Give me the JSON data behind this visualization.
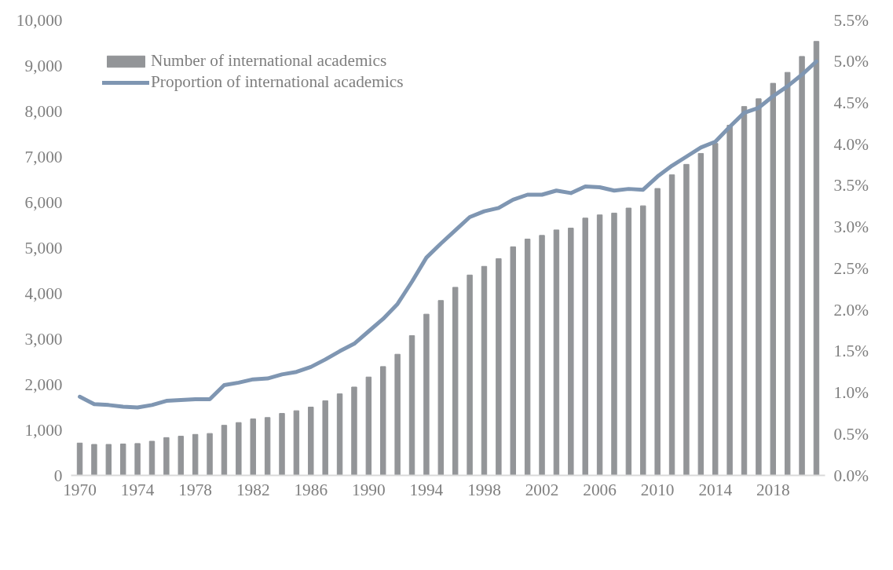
{
  "chart_data": {
    "type": "bar",
    "x": [
      1970,
      1971,
      1972,
      1973,
      1974,
      1975,
      1976,
      1977,
      1978,
      1979,
      1980,
      1981,
      1982,
      1983,
      1984,
      1985,
      1986,
      1987,
      1988,
      1989,
      1990,
      1991,
      1992,
      1993,
      1994,
      1995,
      1996,
      1997,
      1998,
      1999,
      2000,
      2001,
      2002,
      2003,
      2004,
      2005,
      2006,
      2007,
      2008,
      2009,
      2010,
      2011,
      2012,
      2013,
      2014,
      2015,
      2016,
      2017,
      2018,
      2019,
      2020,
      2021
    ],
    "series": [
      {
        "name": "Number of international academics",
        "color": "#939598",
        "values": [
          710,
          680,
          680,
          690,
          700,
          750,
          830,
          860,
          900,
          920,
          1100,
          1160,
          1240,
          1270,
          1360,
          1420,
          1500,
          1640,
          1790,
          1940,
          2160,
          2390,
          2660,
          3070,
          3540,
          3840,
          4130,
          4400,
          4590,
          4760,
          5020,
          5190,
          5270,
          5390,
          5430,
          5650,
          5720,
          5760,
          5870,
          5920,
          6300,
          6600,
          6830,
          7070,
          7290,
          7690,
          8100,
          8270,
          8610,
          8850,
          9200,
          9530
        ]
      },
      {
        "name": "Proportion of international academics",
        "type": "line",
        "axis": "y2",
        "color": "#7f96b2",
        "values": [
          0.95,
          0.86,
          0.85,
          0.83,
          0.82,
          0.85,
          0.9,
          0.91,
          0.92,
          0.92,
          1.09,
          1.12,
          1.16,
          1.17,
          1.22,
          1.25,
          1.31,
          1.4,
          1.5,
          1.59,
          1.74,
          1.89,
          2.07,
          2.34,
          2.63,
          2.8,
          2.96,
          3.12,
          3.19,
          3.23,
          3.33,
          3.39,
          3.39,
          3.44,
          3.41,
          3.49,
          3.48,
          3.44,
          3.46,
          3.45,
          3.61,
          3.74,
          3.85,
          3.96,
          4.03,
          4.21,
          4.38,
          4.44,
          4.58,
          4.7,
          4.84,
          5.0
        ]
      }
    ],
    "xlim": [
      1969.4,
      2021.6
    ],
    "xticks": [
      1970,
      1974,
      1978,
      1982,
      1986,
      1990,
      1994,
      1998,
      2002,
      2006,
      2010,
      2014,
      2018
    ],
    "ylim": [
      0,
      10000
    ],
    "yticks": [
      0,
      {
        "value": 1000,
        "label": "1,000"
      },
      {
        "value": 2000,
        "label": "2,000"
      },
      {
        "value": 3000,
        "label": "3,000"
      },
      {
        "value": 4000,
        "label": "4,000"
      },
      {
        "value": 5000,
        "label": "5,000"
      },
      {
        "value": 6000,
        "label": "6,000"
      },
      {
        "value": 7000,
        "label": "7,000"
      },
      {
        "value": 8000,
        "label": "8,000"
      },
      {
        "value": 9000,
        "label": "9,000"
      },
      {
        "value": 10000,
        "label": "10,000"
      }
    ],
    "y2lim": [
      0,
      5.5
    ],
    "y2ticks": [
      {
        "value": 0,
        "label": "0.0%"
      },
      {
        "value": 0.5,
        "label": "0.5%"
      },
      {
        "value": 1,
        "label": "1.0%"
      },
      {
        "value": 1.5,
        "label": "1.5%"
      },
      {
        "value": 2,
        "label": "2.0%"
      },
      {
        "value": 2.5,
        "label": "2.5%"
      },
      {
        "value": 3,
        "label": "3.0%"
      },
      {
        "value": 3.5,
        "label": "3.5%"
      },
      {
        "value": 4,
        "label": "4.0%"
      },
      {
        "value": 4.5,
        "label": "4.5%"
      },
      {
        "value": 5,
        "label": "5.0%"
      },
      {
        "value": 5.5,
        "label": "5.5%"
      }
    ],
    "grid": false,
    "legend": "top left",
    "line_style": "solid",
    "marker": "none"
  }
}
